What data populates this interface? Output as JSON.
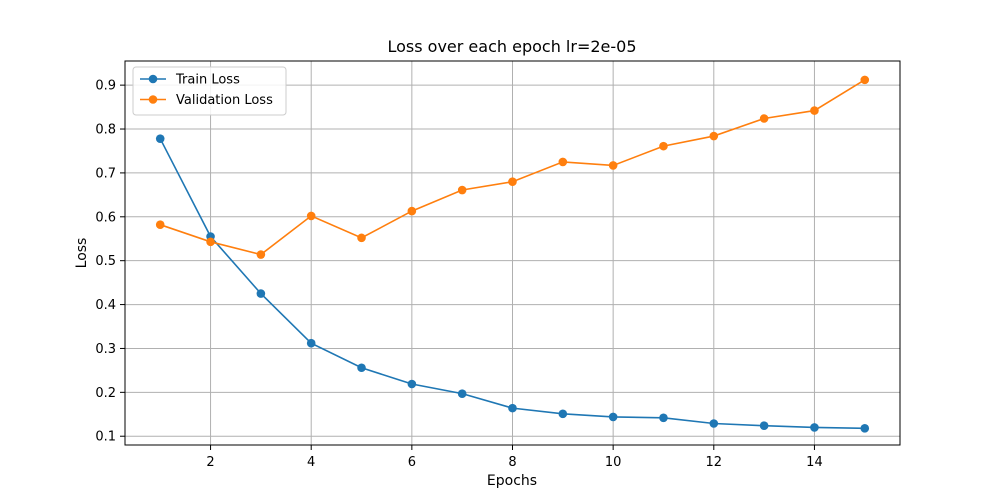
{
  "chart_data": {
    "type": "line",
    "title": "Loss over each epoch lr=2e-05",
    "xlabel": "Epochs",
    "ylabel": "Loss",
    "x": [
      1,
      2,
      3,
      4,
      5,
      6,
      7,
      8,
      9,
      10,
      11,
      12,
      13,
      14,
      15
    ],
    "xlim": [
      0.3,
      15.7
    ],
    "ylim": [
      0.08,
      0.955
    ],
    "xticks": [
      2,
      4,
      6,
      8,
      10,
      12,
      14
    ],
    "yticks": [
      0.1,
      0.2,
      0.3,
      0.4,
      0.5,
      0.6,
      0.7,
      0.8,
      0.9
    ],
    "xtick_labels": [
      "2",
      "4",
      "6",
      "8",
      "10",
      "12",
      "14"
    ],
    "ytick_labels": [
      "0.1",
      "0.2",
      "0.3",
      "0.4",
      "0.5",
      "0.6",
      "0.7",
      "0.8",
      "0.9"
    ],
    "grid": true,
    "legend_position": "top-left",
    "series": [
      {
        "name": "Train Loss",
        "color": "#1f77b4",
        "values": [
          0.778,
          0.555,
          0.425,
          0.312,
          0.256,
          0.219,
          0.197,
          0.164,
          0.151,
          0.144,
          0.142,
          0.129,
          0.124,
          0.12,
          0.118
        ]
      },
      {
        "name": "Validation Loss",
        "color": "#ff7f0e",
        "values": [
          0.582,
          0.543,
          0.514,
          0.602,
          0.552,
          0.613,
          0.661,
          0.68,
          0.725,
          0.717,
          0.761,
          0.784,
          0.824,
          0.842,
          0.912
        ]
      }
    ]
  }
}
